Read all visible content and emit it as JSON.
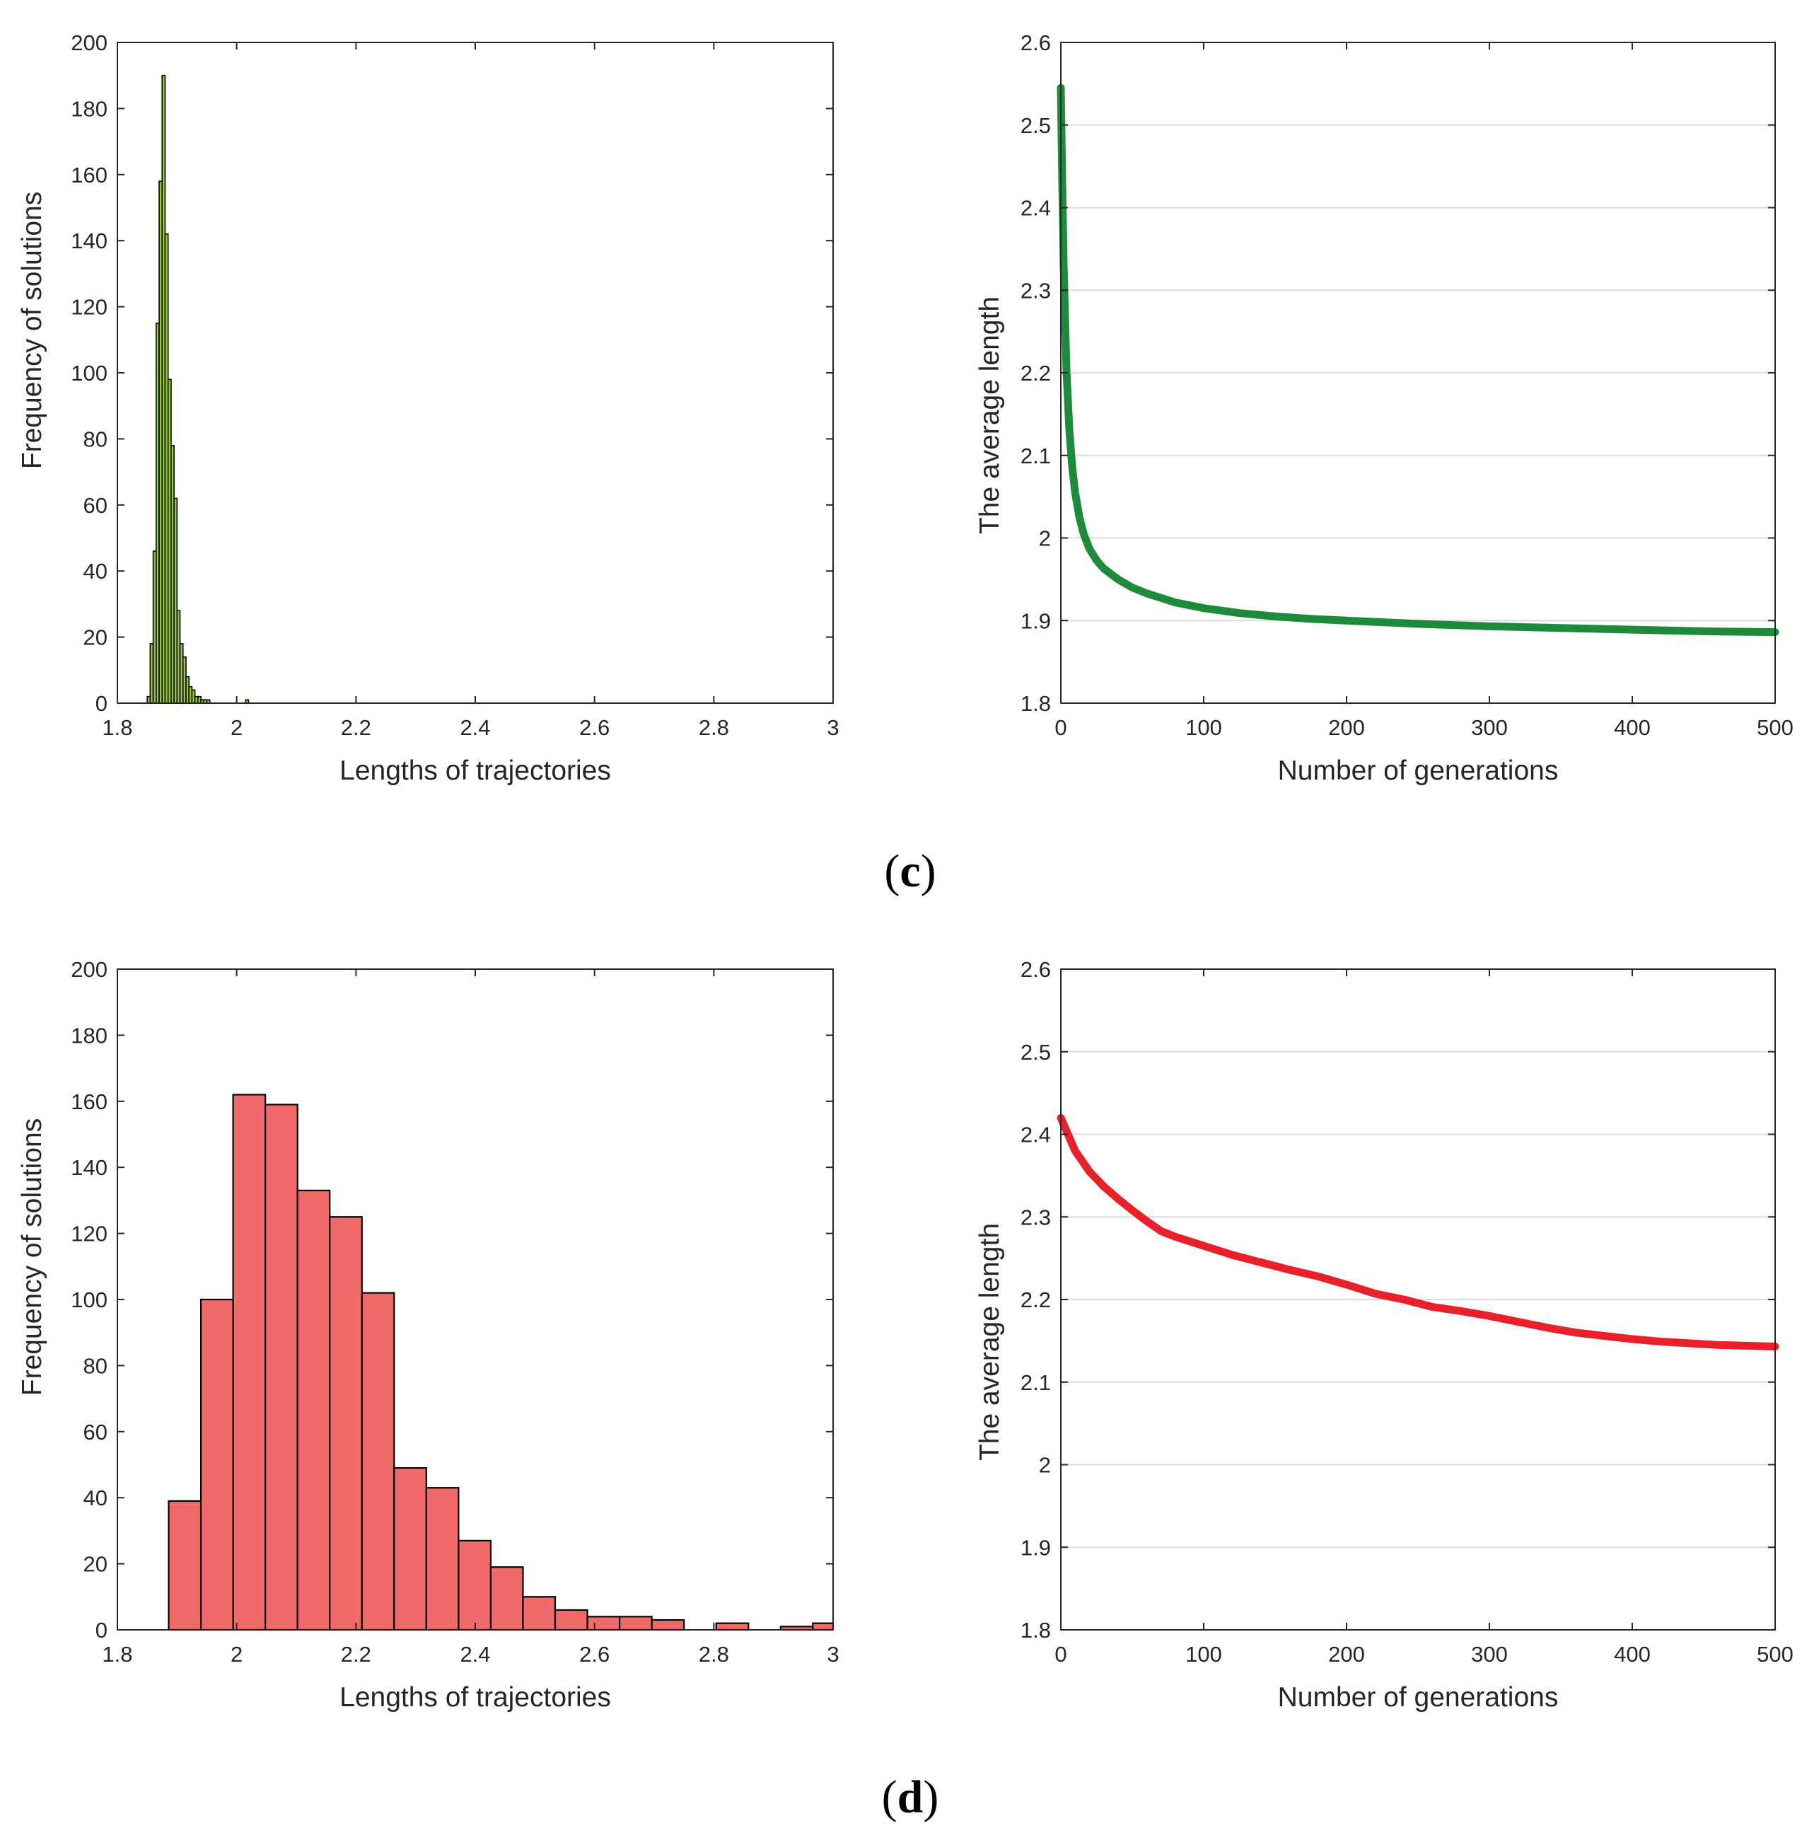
{
  "figure": {
    "panels": [
      {
        "label_open": "(",
        "label_letter": "c",
        "label_close": ")"
      },
      {
        "label_open": "(",
        "label_letter": "d",
        "label_close": ")"
      }
    ]
  },
  "chart_data": [
    {
      "type": "bar",
      "panel": "c",
      "subtype": "histogram",
      "xlabel": "Lengths of trajectories",
      "ylabel": "Frequency of solutions",
      "xlim": [
        1.8,
        3
      ],
      "ylim": [
        0,
        200
      ],
      "xticks": [
        "1.8",
        "2",
        "2.2",
        "2.4",
        "2.6",
        "2.8",
        "3"
      ],
      "yticks": [
        "0",
        "20",
        "40",
        "60",
        "80",
        "100",
        "120",
        "140",
        "160",
        "180",
        "200"
      ],
      "grid": false,
      "bar_color": "#99cc33",
      "bin_edges": [
        1.85,
        1.855,
        1.86,
        1.865,
        1.87,
        1.875,
        1.88,
        1.885,
        1.89,
        1.895,
        1.9,
        1.905,
        1.91,
        1.915,
        1.92,
        1.925,
        1.93,
        1.935,
        1.94,
        1.945,
        1.95,
        1.955,
        1.96,
        1.965,
        1.97,
        1.975,
        1.98,
        1.985,
        1.99,
        1.995,
        2.0,
        2.005,
        2.01,
        2.015,
        2.02,
        2.025,
        2.03
      ],
      "values": [
        2,
        18,
        46,
        115,
        158,
        190,
        142,
        98,
        78,
        62,
        28,
        18,
        14,
        8,
        5,
        4,
        2,
        2,
        1,
        1,
        1,
        0,
        0,
        0,
        0,
        0,
        0,
        0,
        0,
        0,
        0,
        0,
        0,
        1,
        0,
        0
      ]
    },
    {
      "type": "line",
      "panel": "c",
      "xlabel": "Number of generations",
      "ylabel": "The average length",
      "xlim": [
        0,
        500
      ],
      "ylim": [
        1.8,
        2.6
      ],
      "xticks": [
        "0",
        "100",
        "200",
        "300",
        "400",
        "500"
      ],
      "yticks": [
        "1.8",
        "1.9",
        "2",
        "2.1",
        "2.2",
        "2.3",
        "2.4",
        "2.5",
        "2.6"
      ],
      "grid": "horizontal",
      "series": [
        {
          "color": "#1e8a3c",
          "x": [
            0,
            1,
            2,
            4,
            6,
            8,
            10,
            13,
            16,
            20,
            25,
            30,
            40,
            50,
            60,
            80,
            100,
            125,
            150,
            175,
            200,
            250,
            300,
            350,
            400,
            450,
            500
          ],
          "y": [
            2.545,
            2.43,
            2.33,
            2.2,
            2.13,
            2.085,
            2.055,
            2.025,
            2.005,
            1.987,
            1.973,
            1.963,
            1.95,
            1.94,
            1.933,
            1.922,
            1.915,
            1.909,
            1.905,
            1.902,
            1.9,
            1.896,
            1.893,
            1.891,
            1.889,
            1.887,
            1.886
          ]
        }
      ]
    },
    {
      "type": "bar",
      "panel": "d",
      "subtype": "histogram",
      "xlabel": "Lengths of trajectories",
      "ylabel": "Frequency of solutions",
      "xlim": [
        1.8,
        3
      ],
      "ylim": [
        0,
        200
      ],
      "xticks": [
        "1.8",
        "2",
        "2.2",
        "2.4",
        "2.6",
        "2.8",
        "3"
      ],
      "yticks": [
        "0",
        "20",
        "40",
        "60",
        "80",
        "100",
        "120",
        "140",
        "160",
        "180",
        "200"
      ],
      "grid": false,
      "bar_color": "#f06a6a",
      "bin_edges": [
        1.886,
        1.94,
        1.994,
        2.048,
        2.102,
        2.156,
        2.21,
        2.264,
        2.318,
        2.372,
        2.426,
        2.48,
        2.534,
        2.588,
        2.642,
        2.696,
        2.75,
        2.804,
        2.858,
        2.912,
        2.966,
        3.0
      ],
      "values": [
        39,
        100,
        162,
        159,
        133,
        125,
        102,
        49,
        43,
        27,
        19,
        10,
        6,
        4,
        4,
        3,
        0,
        2,
        0,
        1,
        2
      ]
    },
    {
      "type": "line",
      "panel": "d",
      "xlabel": "Number of generations",
      "ylabel": "The average length",
      "xlim": [
        0,
        500
      ],
      "ylim": [
        1.8,
        2.6
      ],
      "xticks": [
        "0",
        "100",
        "200",
        "300",
        "400",
        "500"
      ],
      "yticks": [
        "1.8",
        "1.9",
        "2",
        "2.1",
        "2.2",
        "2.3",
        "2.4",
        "2.5",
        "2.6"
      ],
      "grid": "horizontal",
      "series": [
        {
          "color": "#e8202a",
          "x": [
            0,
            10,
            20,
            30,
            40,
            50,
            60,
            70,
            80,
            100,
            120,
            140,
            160,
            180,
            200,
            220,
            240,
            260,
            280,
            300,
            320,
            340,
            360,
            380,
            400,
            420,
            440,
            460,
            480,
            500
          ],
          "y": [
            2.42,
            2.38,
            2.355,
            2.337,
            2.322,
            2.308,
            2.295,
            2.283,
            2.276,
            2.265,
            2.254,
            2.245,
            2.236,
            2.228,
            2.218,
            2.207,
            2.2,
            2.191,
            2.186,
            2.18,
            2.173,
            2.166,
            2.16,
            2.156,
            2.152,
            2.149,
            2.147,
            2.145,
            2.144,
            2.143
          ]
        }
      ]
    }
  ]
}
